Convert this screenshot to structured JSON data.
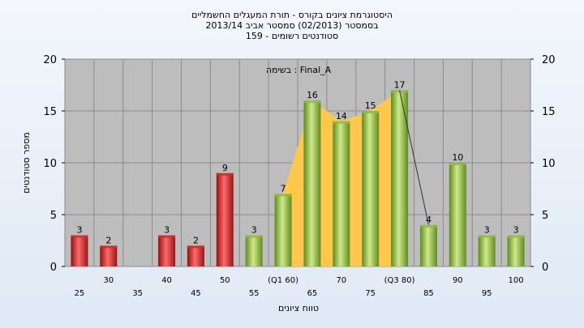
{
  "chart_data": {
    "type": "bar",
    "title": "היסטוגרמת ציונים בקורס - תורת המעגלים החשמליים",
    "subtitle_lines": [
      "בסמסטר  (02/2013)  סמסטר אביב 2013/14",
      "סטודנטים רשומים - 159"
    ],
    "annotation": "בשימה : Final_A",
    "xlabel": "טווח ציונים",
    "ylabel": "מספר סטודנטים",
    "ylim": [
      0,
      20
    ],
    "yticks": [
      0,
      5,
      10,
      15,
      20
    ],
    "grid": true,
    "categories": [
      "25",
      "30",
      "35",
      "40",
      "45",
      "50",
      "55",
      "(Q1 60)",
      "65",
      "70",
      "75",
      "(Q3 80)",
      "85",
      "90",
      "95",
      "100"
    ],
    "values": [
      3,
      2,
      null,
      3,
      2,
      9,
      3,
      7,
      16,
      14,
      15,
      17,
      4,
      10,
      3,
      3
    ],
    "bar_colors": [
      "#d42a2a",
      "#d42a2a",
      null,
      "#d42a2a",
      "#d42a2a",
      "#d42a2a",
      "#8fbc3a",
      "#8fbc3a",
      "#8fbc3a",
      "#8fbc3a",
      "#8fbc3a",
      "#8fbc3a",
      "#8fbc3a",
      "#8fbc3a",
      "#8fbc3a",
      "#8fbc3a"
    ],
    "colors": {
      "fail": "#d42a2a",
      "pass": "#8fbc3a",
      "band": "#ffc84a",
      "plot_bg": "#bdbdbd"
    },
    "band": {
      "from_index": 7,
      "to_index": 11
    }
  }
}
